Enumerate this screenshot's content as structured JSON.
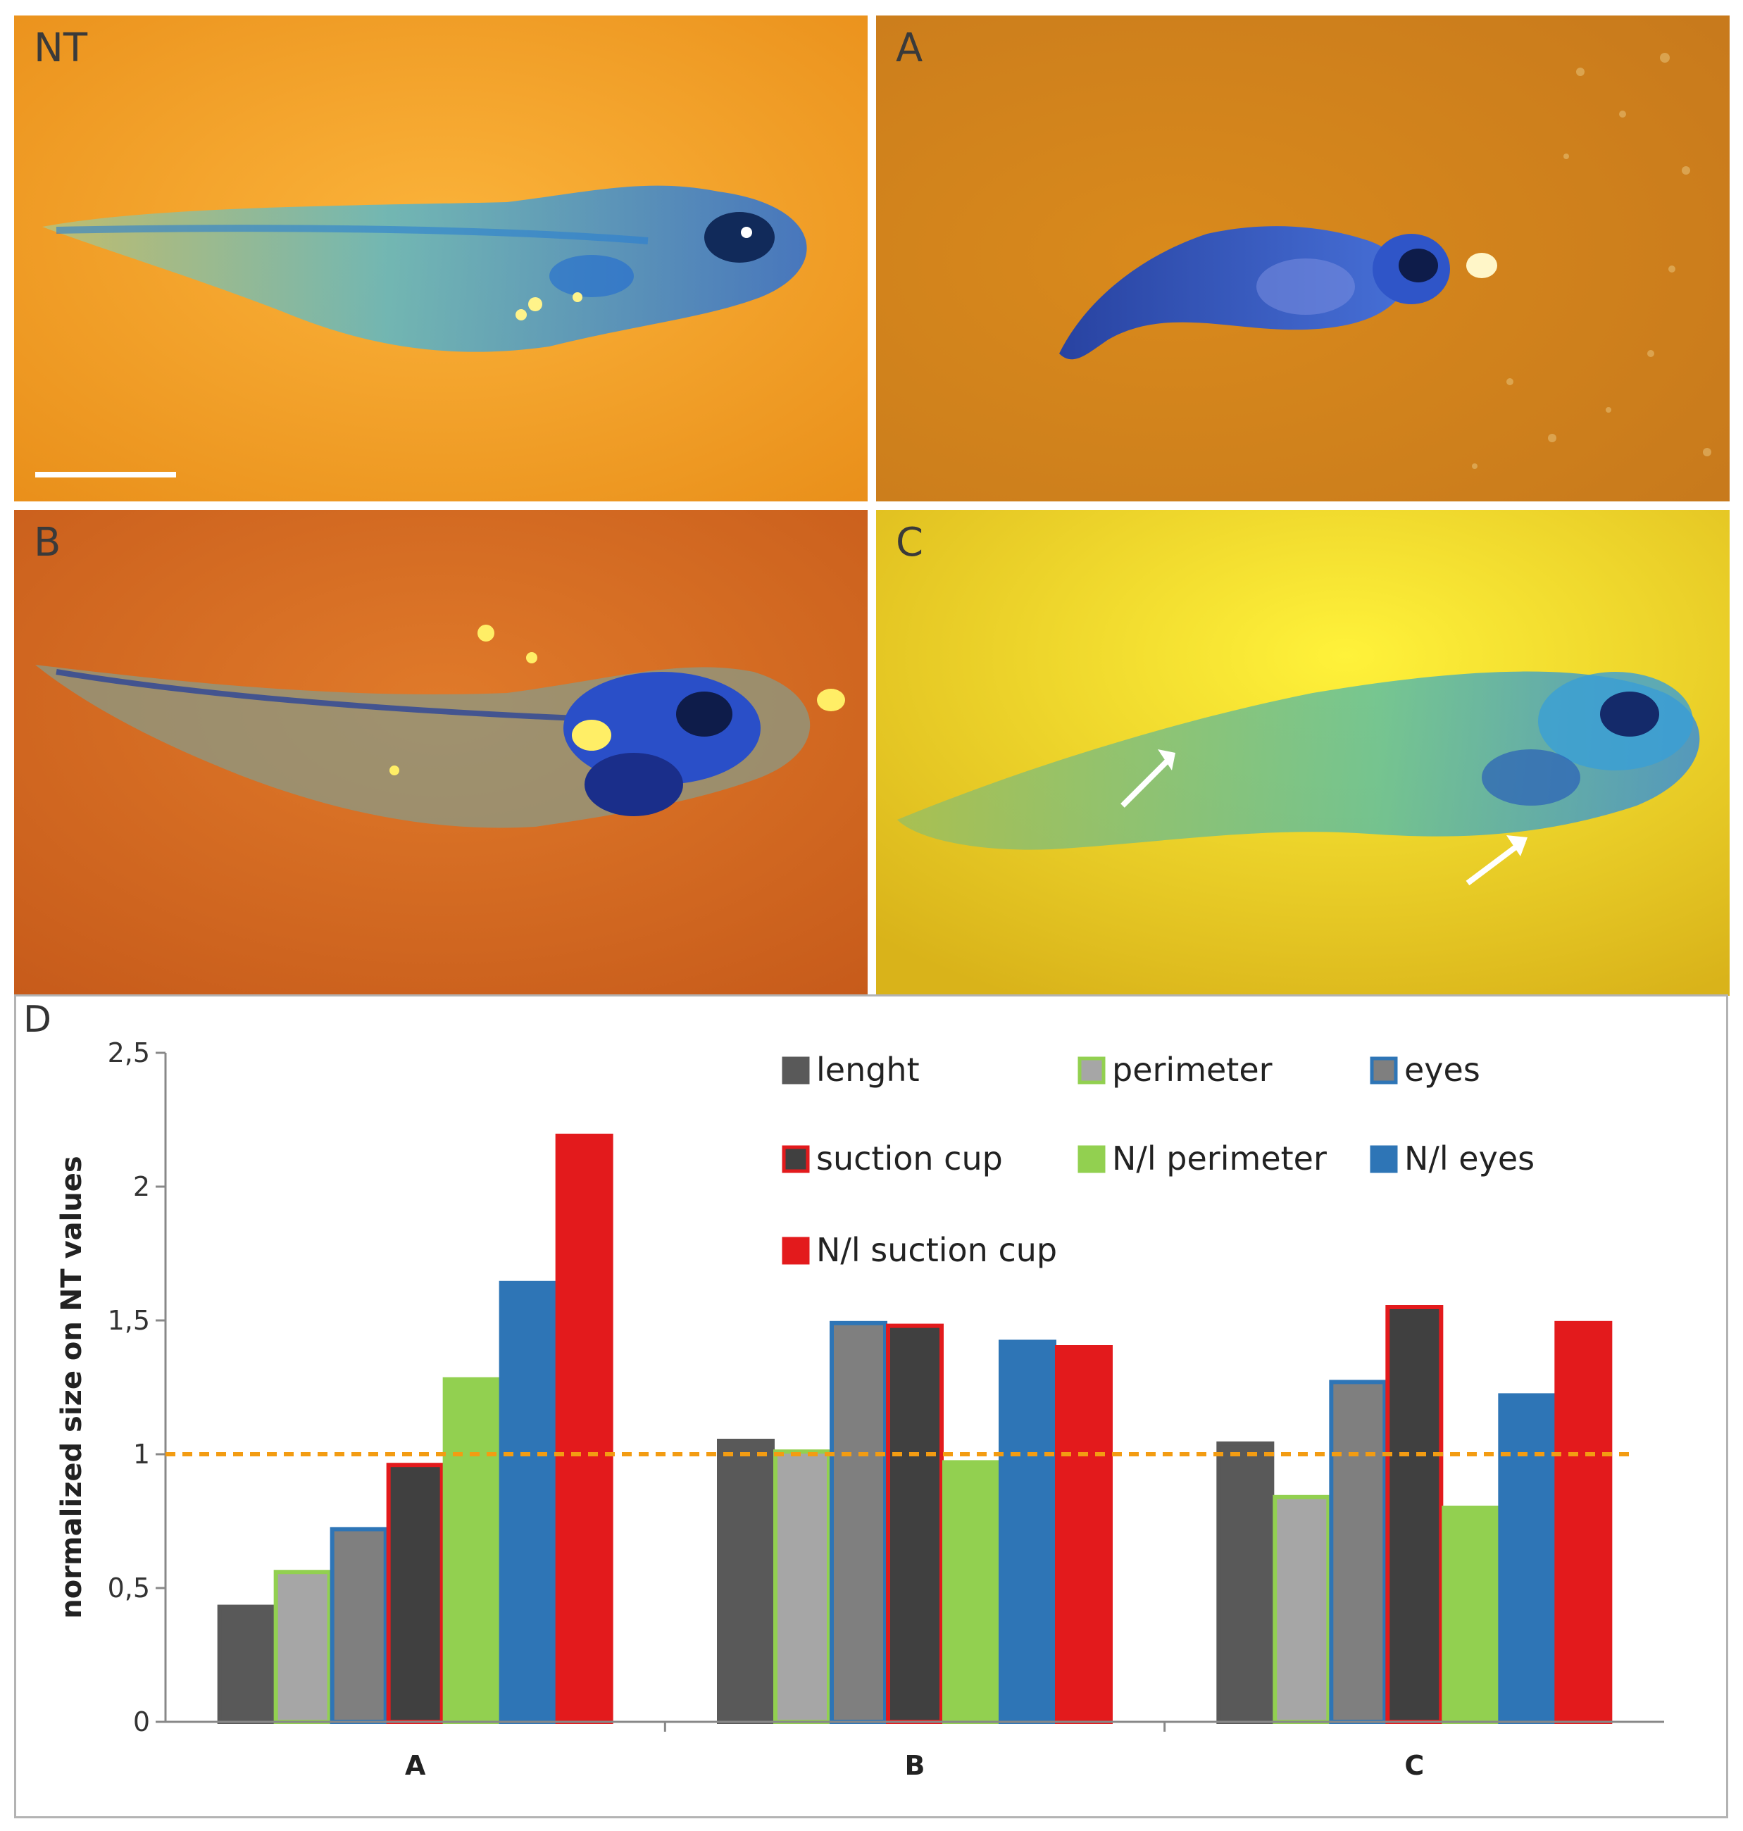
{
  "panels": {
    "nt": "NT",
    "a": "A",
    "b": "B",
    "c": "C",
    "d": "D"
  },
  "colors": {
    "nt_bg": "#f5a623",
    "a_bg": "#d98a1c",
    "b_bg": "#d4691f",
    "c_bg": "#f0d21a",
    "tadpole_blue": "#2a5bd6",
    "reference_line": "#f39c12"
  },
  "chart_data": {
    "type": "bar",
    "categories": [
      "A",
      "B",
      "C"
    ],
    "ylabel": "normalized size on NT values",
    "ylim": [
      0,
      2.5
    ],
    "yticks": [
      "0",
      "0,5",
      "1",
      "1,5",
      "2",
      "2,5"
    ],
    "reference_line": 1,
    "legend_position": "top-right",
    "series": [
      {
        "name": "lenght",
        "color": "#595959",
        "edge": "#595959",
        "values": [
          0.43,
          1.05,
          1.04
        ]
      },
      {
        "name": "perimeter",
        "color": "#a6a6a6",
        "edge": "#92d050",
        "values": [
          0.56,
          1.01,
          0.84
        ]
      },
      {
        "name": "eyes",
        "color": "#7f7f7f",
        "edge": "#2e75b6",
        "values": [
          0.72,
          1.49,
          1.27
        ]
      },
      {
        "name": "suction cup",
        "color": "#404040",
        "edge": "#e31a1c",
        "values": [
          0.96,
          1.48,
          1.55
        ]
      },
      {
        "name": "N/l perimeter",
        "color": "#92d050",
        "edge": "#92d050",
        "values": [
          1.28,
          0.97,
          0.8
        ]
      },
      {
        "name": "N/l eyes",
        "color": "#2e75b6",
        "edge": "#2e75b6",
        "values": [
          1.64,
          1.42,
          1.22
        ]
      },
      {
        "name": "N/l suction cup",
        "color": "#e31a1c",
        "edge": "#e31a1c",
        "values": [
          2.19,
          1.4,
          1.49
        ]
      }
    ]
  }
}
